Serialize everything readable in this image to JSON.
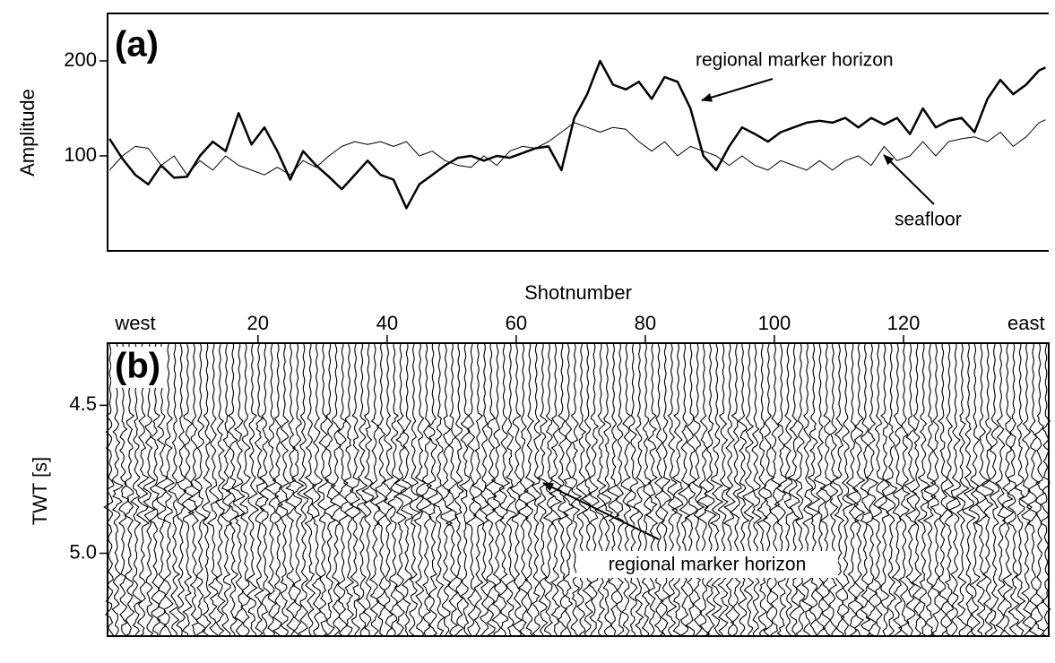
{
  "chart_data": [
    {
      "type": "line",
      "label": "(a)",
      "y_label": "Amplitude",
      "xlim": [
        -3.3,
        142.5
      ],
      "ylim": [
        0,
        250
      ],
      "yticks": [
        100,
        200
      ],
      "x": [
        -3,
        -1,
        1,
        3,
        5,
        7,
        9,
        11,
        13,
        15,
        17,
        19,
        21,
        23,
        25,
        27,
        29,
        31,
        33,
        35,
        37,
        39,
        41,
        43,
        45,
        47,
        49,
        51,
        53,
        55,
        57,
        59,
        61,
        63,
        65,
        67,
        69,
        71,
        73,
        75,
        77,
        79,
        81,
        83,
        85,
        87,
        89,
        91,
        93,
        95,
        97,
        99,
        101,
        103,
        105,
        107,
        109,
        111,
        113,
        115,
        117,
        119,
        121,
        123,
        125,
        127,
        129,
        131,
        133,
        135,
        137,
        139,
        141,
        142
      ],
      "series": [
        {
          "name": "regional marker horizon",
          "color": "#000000",
          "line_width": 2.5,
          "values": [
            118,
            97,
            80,
            70,
            90,
            77,
            78,
            100,
            115,
            105,
            145,
            112,
            130,
            105,
            75,
            105,
            90,
            78,
            65,
            80,
            95,
            80,
            75,
            45,
            70,
            80,
            90,
            98,
            100,
            95,
            100,
            98,
            103,
            108,
            110,
            85,
            140,
            165,
            200,
            175,
            170,
            178,
            160,
            183,
            178,
            150,
            100,
            85,
            110,
            130,
            123,
            115,
            125,
            130,
            135,
            137,
            135,
            140,
            130,
            140,
            133,
            140,
            123,
            150,
            130,
            137,
            140,
            125,
            160,
            180,
            165,
            175,
            190,
            193
          ]
        },
        {
          "name": "seafloor",
          "color": "#000000",
          "line_width": 1,
          "values": [
            85,
            100,
            110,
            108,
            90,
            100,
            80,
            95,
            85,
            100,
            90,
            85,
            80,
            88,
            80,
            95,
            88,
            100,
            110,
            115,
            112,
            115,
            110,
            115,
            100,
            105,
            95,
            90,
            88,
            100,
            90,
            105,
            110,
            108,
            115,
            125,
            135,
            130,
            125,
            130,
            128,
            115,
            105,
            115,
            100,
            110,
            105,
            100,
            90,
            100,
            90,
            85,
            95,
            90,
            85,
            95,
            85,
            95,
            100,
            90,
            110,
            95,
            100,
            115,
            100,
            115,
            118,
            120,
            115,
            125,
            110,
            120,
            135,
            138
          ]
        }
      ]
    },
    {
      "type": "seismic",
      "label": "(b)",
      "x_label": "Shotnumber",
      "y_label": "TWT [s]",
      "xlim": [
        -3.3,
        142.5
      ],
      "ylim": [
        4.29,
        5.28
      ],
      "y_inverted": true,
      "xticks": [
        {
          "value": 1,
          "label": "west"
        },
        20,
        40,
        60,
        80,
        100,
        120,
        {
          "value": 139,
          "label": "east"
        }
      ],
      "yticks": [
        4.5,
        {
          "value": 5,
          "label": "5.0"
        }
      ],
      "annotation": "regional marker horizon"
    }
  ]
}
